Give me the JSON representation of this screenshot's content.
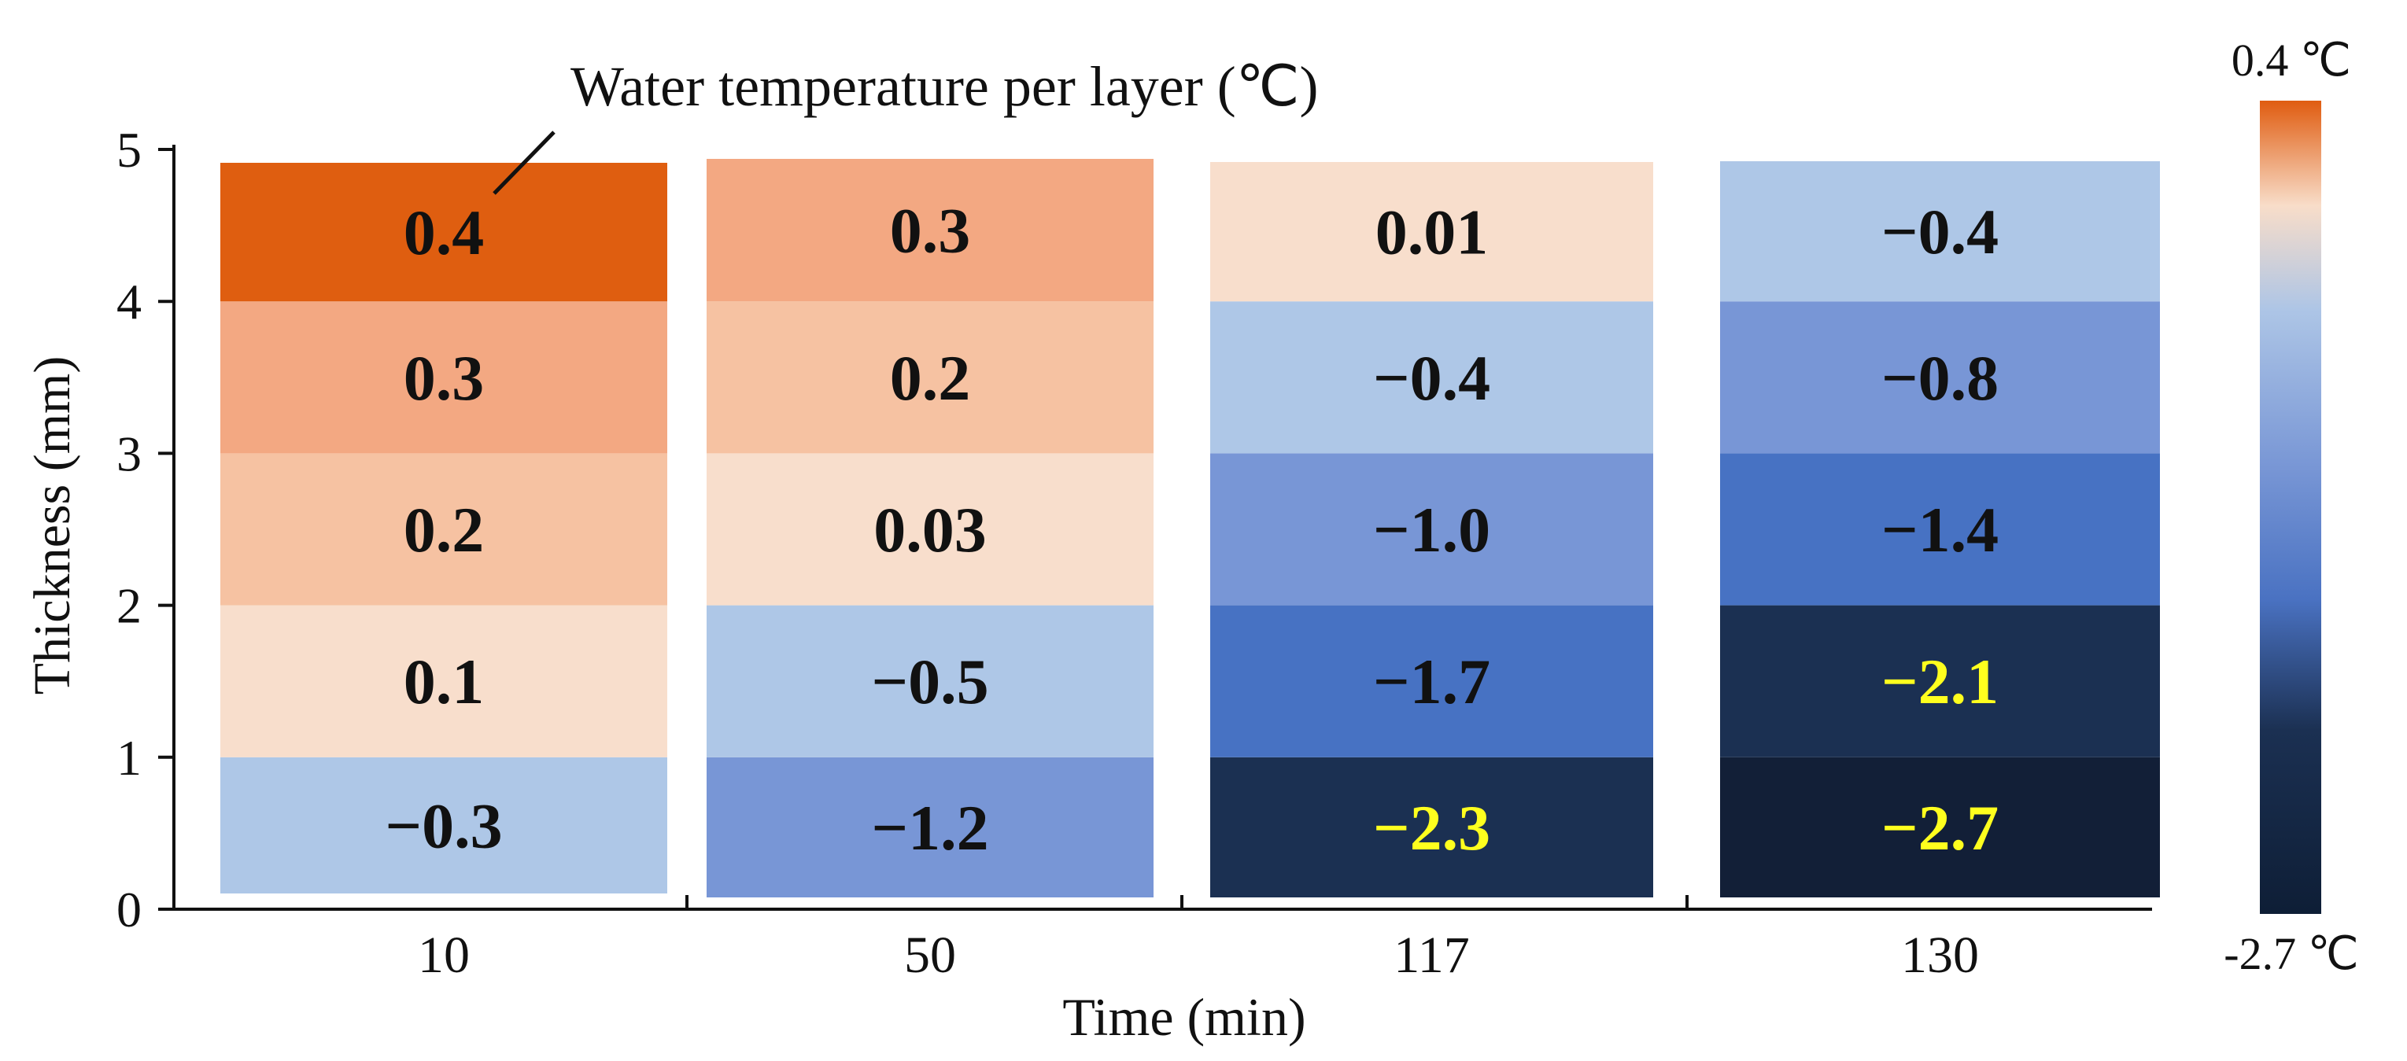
{
  "chart_data": {
    "type": "heatmap",
    "title": "",
    "annotation": "Water temperature per layer (℃)",
    "xlabel": "Time (min)",
    "ylabel": "Thickness (mm)",
    "categories": [
      "10",
      "50",
      "117",
      "130"
    ],
    "y_ticks": [
      "0",
      "1",
      "2",
      "3",
      "4",
      "5"
    ],
    "ylim": [
      0,
      5
    ],
    "layers_bottom_to_top": [
      "0-1 mm",
      "1-2 mm",
      "2-3 mm",
      "3-4 mm",
      "4-5 mm"
    ],
    "values": [
      [
        -0.3,
        0.1,
        0.2,
        0.3,
        0.4
      ],
      [
        -1.2,
        -0.5,
        0.03,
        0.2,
        0.3
      ],
      [
        -2.3,
        -1.7,
        -1.0,
        -0.4,
        0.01
      ],
      [
        -2.7,
        -2.1,
        -1.4,
        -0.8,
        -0.4
      ]
    ],
    "value_labels": [
      [
        "−0.3",
        "0.1",
        "0.2",
        "0.3",
        "0.4"
      ],
      [
        "−1.2",
        "−0.5",
        "0.03",
        "0.2",
        "0.3"
      ],
      [
        "−2.3",
        "−1.7",
        "−1.0",
        "−0.4",
        "0.01"
      ],
      [
        "−2.7",
        "−2.1",
        "−1.4",
        "−0.8",
        "−0.4"
      ]
    ],
    "colorbar": {
      "min": -2.7,
      "max": 0.4,
      "min_label": "-2.7 ℃",
      "max_label": "0.4 ℃",
      "stops": [
        {
          "value": 0.4,
          "color": "#E05C10"
        },
        {
          "value": 0.0,
          "color": "#F8DDC9"
        },
        {
          "value": -0.4,
          "color": "#ADC5E6"
        },
        {
          "value": -1.0,
          "color": "#7896D5"
        },
        {
          "value": -1.5,
          "color": "#4A72C2"
        },
        {
          "value": -2.0,
          "color": "#1B3052"
        },
        {
          "value": -2.7,
          "color": "#0E1E36"
        }
      ]
    },
    "cell_colors": [
      [
        "#AEC7E7",
        "#F8DECC",
        "#F6C2A2",
        "#F3A882",
        "#DF5E10"
      ],
      [
        "#7896D6",
        "#AEC7E7",
        "#F8DECC",
        "#F6C2A2",
        "#F3A882"
      ],
      [
        "#1B3052",
        "#4772C3",
        "#7896D6",
        "#AEC7E7",
        "#F8DECC"
      ],
      [
        "#121F37",
        "#1B3052",
        "#4772C3",
        "#7896D6",
        "#AEC7E7"
      ]
    ],
    "label_colors": {
      "dark_text": "#111111",
      "light_text": "#FFFF1E"
    }
  }
}
